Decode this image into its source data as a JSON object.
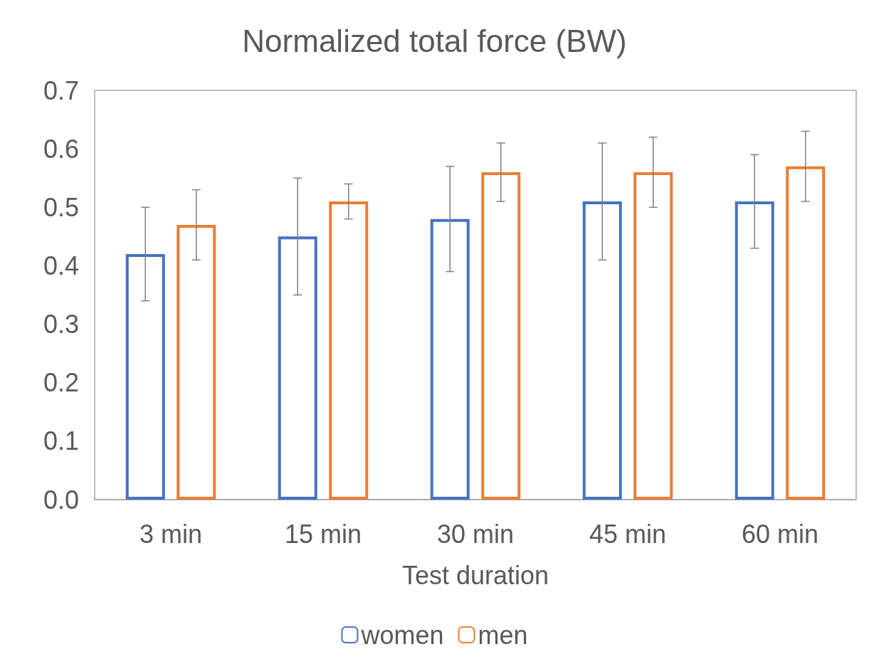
{
  "chart_data": {
    "type": "bar",
    "title": "Normalized total force (BW)",
    "xlabel": "Test duration",
    "categories": [
      "3 min",
      "15 min",
      "30 min",
      "45 min",
      "60 min"
    ],
    "series": [
      {
        "name": "women",
        "color": "#4472c4",
        "values": [
          0.42,
          0.45,
          0.48,
          0.51,
          0.51
        ],
        "errors": [
          0.08,
          0.1,
          0.09,
          0.1,
          0.08
        ]
      },
      {
        "name": "men",
        "color": "#ed7d31",
        "values": [
          0.47,
          0.51,
          0.56,
          0.56,
          0.57
        ],
        "errors": [
          0.06,
          0.03,
          0.05,
          0.06,
          0.06
        ]
      }
    ],
    "ylim": [
      0,
      0.7
    ],
    "yticks": [
      {
        "value": 0,
        "label": "0.0"
      },
      0.1,
      0.2,
      0.3,
      0.4,
      0.5,
      0.6,
      0.7
    ],
    "grid": false,
    "legend": "bottom"
  }
}
